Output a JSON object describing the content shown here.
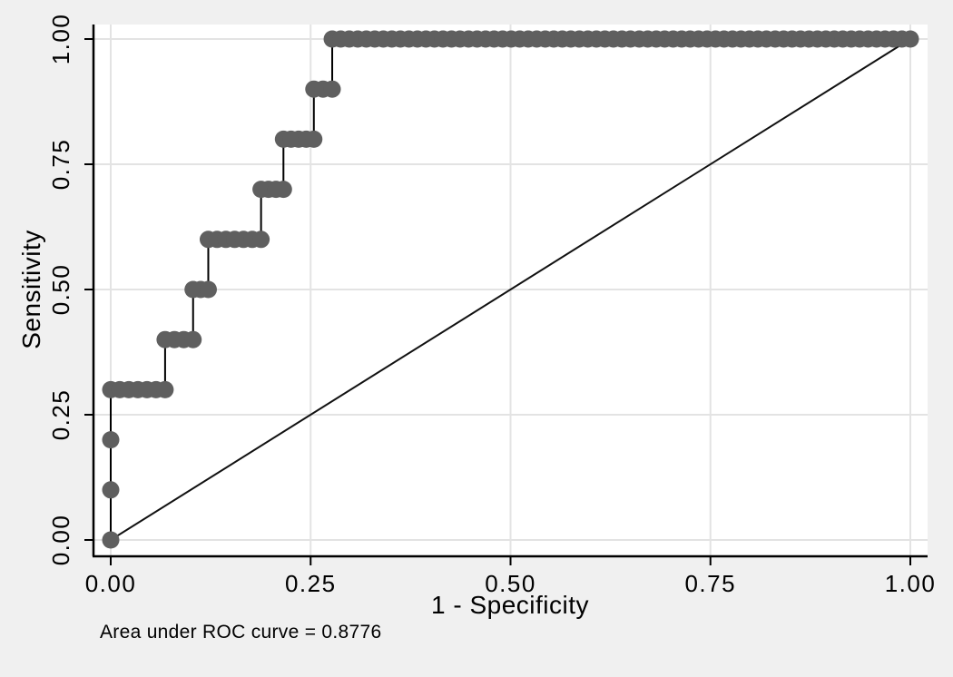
{
  "figure": {
    "background_color": "#f0f0f0",
    "plot_background_color": "#ffffff",
    "gridline_color": "#e3e3e3",
    "axis_color": "#000000",
    "marker_color": "#5f5f5f",
    "step_line_color": "#000000",
    "reference_line_color": "#111111",
    "text_color": "#000000"
  },
  "chart_data": {
    "type": "line",
    "subtype": "roc-step-curve",
    "title": "",
    "xlabel": "1 - Specificity",
    "ylabel": "Sensitivity",
    "xlim": [
      0,
      1
    ],
    "ylim": [
      0,
      1
    ],
    "grid": true,
    "x_ticks": [
      0,
      0.25,
      0.5,
      0.75,
      1
    ],
    "x_tick_labels": [
      "0.00",
      "0.25",
      "0.50",
      "0.75",
      "1.00"
    ],
    "y_ticks": [
      0,
      0.25,
      0.5,
      0.75,
      1
    ],
    "y_tick_labels": [
      "0.00",
      "0.25",
      "0.50",
      "0.75",
      "1.00"
    ],
    "auc": 0.8776,
    "caption": "Area under ROC curve = 0.8776",
    "roc_step_points": [
      [
        0,
        0
      ],
      [
        0,
        0.1
      ],
      [
        0,
        0.2
      ],
      [
        0,
        0.3
      ],
      [
        0.068,
        0.3
      ],
      [
        0.068,
        0.4
      ],
      [
        0.103,
        0.4
      ],
      [
        0.103,
        0.5
      ],
      [
        0.122,
        0.5
      ],
      [
        0.122,
        0.6
      ],
      [
        0.188,
        0.6
      ],
      [
        0.188,
        0.7
      ],
      [
        0.216,
        0.7
      ],
      [
        0.216,
        0.8
      ],
      [
        0.254,
        0.8
      ],
      [
        0.254,
        0.9
      ],
      [
        0.277,
        0.9
      ],
      [
        0.277,
        1.0
      ],
      [
        1,
        1
      ]
    ],
    "marker_single_points": [
      [
        0,
        0
      ],
      [
        0,
        0.1
      ],
      [
        0,
        0.2
      ]
    ],
    "marker_runs": [
      {
        "y": 0.3,
        "x_start": 0.0,
        "x_end": 0.068
      },
      {
        "y": 0.4,
        "x_start": 0.068,
        "x_end": 0.103
      },
      {
        "y": 0.5,
        "x_start": 0.103,
        "x_end": 0.122
      },
      {
        "y": 0.6,
        "x_start": 0.122,
        "x_end": 0.188
      },
      {
        "y": 0.7,
        "x_start": 0.188,
        "x_end": 0.216
      },
      {
        "y": 0.8,
        "x_start": 0.216,
        "x_end": 0.254
      },
      {
        "y": 0.9,
        "x_start": 0.254,
        "x_end": 0.277
      },
      {
        "y": 1.0,
        "x_start": 0.277,
        "x_end": 0.65
      },
      {
        "y": 1.0,
        "x_start": 0.661,
        "x_end": 0.82
      },
      {
        "y": 1.0,
        "x_start": 0.831,
        "x_end": 1.0
      }
    ],
    "reference_line": {
      "from": [
        0,
        0
      ],
      "to": [
        1,
        1
      ]
    }
  }
}
